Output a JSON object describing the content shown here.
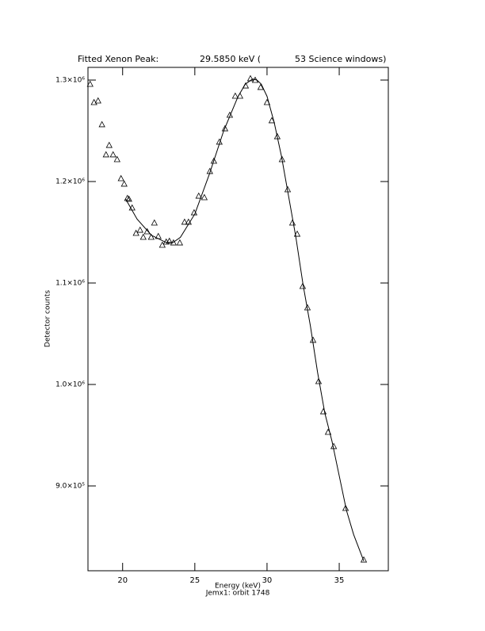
{
  "chart_data": {
    "type": "scatter-fit",
    "title_parts": [
      "Fitted Xenon Peak:",
      "29.5850 keV (",
      "53 Science windows)"
    ],
    "x_label": "Energy (keV)",
    "subtitle": "Jemx1: orbit 1748",
    "y_label": "Detector counts",
    "xlim": [
      17.6,
      38.4
    ],
    "ylim": [
      816400,
      1312500
    ],
    "xticks": [
      20,
      25,
      30,
      35
    ],
    "yticks": [
      {
        "value": 900000,
        "label": "9.0×10⁵"
      },
      {
        "value": 1000000,
        "label": "1.0×10⁶"
      },
      {
        "value": 1100000,
        "label": "1.1×10⁶"
      },
      {
        "value": 1200000,
        "label": "1.2×10⁶"
      },
      {
        "value": 1300000,
        "label": "1.3×10⁶"
      }
    ],
    "color": "#000000",
    "series": [
      {
        "kind": "points",
        "x": [
          17.75,
          18.02,
          18.3,
          18.57,
          18.85,
          19.07,
          19.34,
          19.62,
          19.89,
          20.11,
          20.33,
          20.44,
          20.66,
          20.93,
          21.21,
          21.43,
          21.7,
          21.98,
          22.2,
          22.47,
          22.75,
          23.02,
          23.24,
          23.52,
          23.96,
          24.29,
          24.56,
          24.95,
          25.27,
          25.66,
          26.04,
          26.32,
          26.7,
          27.09,
          27.42,
          27.8,
          28.13,
          28.52,
          28.85,
          29.18,
          29.56,
          30.0,
          30.33,
          30.71,
          31.04,
          31.43,
          31.76,
          32.09,
          32.47,
          32.8,
          33.19,
          33.57,
          33.9,
          34.23,
          34.62,
          35.44,
          36.7
        ],
        "values": [
          1296100,
          1278100,
          1279700,
          1256300,
          1226600,
          1235900,
          1226600,
          1221900,
          1203100,
          1197700,
          1183600,
          1182800,
          1174200,
          1149200,
          1152300,
          1145300,
          1150800,
          1145300,
          1159400,
          1146100,
          1137500,
          1140600,
          1141400,
          1139800,
          1139800,
          1160200,
          1160200,
          1169500,
          1185900,
          1184400,
          1210200,
          1220300,
          1239100,
          1252300,
          1265600,
          1284400,
          1284400,
          1294500,
          1301600,
          1300000,
          1293000,
          1278100,
          1260200,
          1244500,
          1221900,
          1192200,
          1159400,
          1148400,
          1096900,
          1075800,
          1043800,
          1003100,
          973400,
          953100,
          939100,
          878100,
          827300
        ]
      },
      {
        "kind": "line",
        "x": [
          20.2,
          21,
          22,
          23,
          23.5,
          24,
          25,
          26,
          27,
          28,
          28.5,
          29,
          29.3,
          29.6,
          30,
          30.5,
          31,
          31.5,
          32,
          32.5,
          33,
          33.5,
          34,
          34.5,
          35,
          35.5,
          36,
          36.7
        ],
        "values": [
          1183000,
          1163000,
          1147000,
          1140000,
          1140000,
          1145000,
          1168000,
          1207000,
          1250000,
          1284000,
          1296000,
          1301000,
          1300000,
          1296000,
          1284000,
          1258000,
          1225000,
          1185000,
          1145000,
          1098000,
          1058000,
          1012000,
          972000,
          944000,
          910000,
          876000,
          852000,
          826000
        ]
      }
    ]
  }
}
